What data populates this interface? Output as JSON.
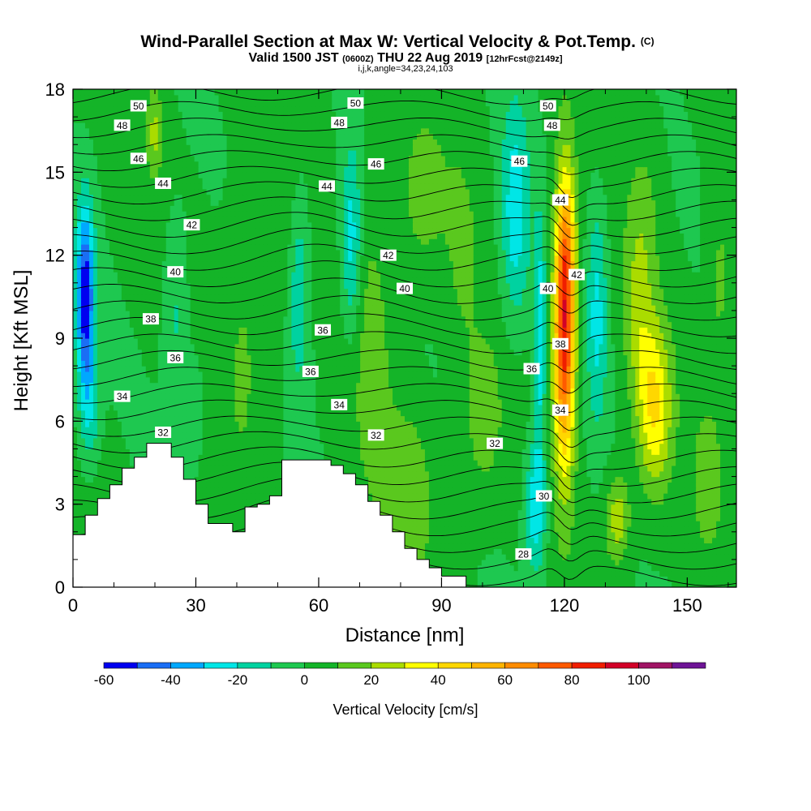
{
  "chart_data": {
    "type": "heatmap",
    "title": "Wind-Parallel Section at Max W: Vertical Velocity & Pot.Temp.",
    "title_suffix": "(C)",
    "subtitle_parts": {
      "valid_prefix": "Valid 1500 JST",
      "zulu": "(0600Z)",
      "date": "THU 22 Aug 2019",
      "forecast": "[12hrFcst@2149z]"
    },
    "indices_line": "i,j,k,angle=34,23,24,103",
    "xlabel": "Distance [nm]",
    "ylabel": "Height [Kft MSL]",
    "xlim": [
      0,
      162
    ],
    "ylim": [
      0,
      18
    ],
    "x_ticks": [
      "0",
      "30",
      "60",
      "90",
      "120",
      "150"
    ],
    "y_ticks": [
      "0",
      "3",
      "6",
      "9",
      "12",
      "15",
      "18"
    ],
    "colorbar": {
      "label": "Vertical Velocity [cm/s]",
      "ticks": [
        "-60",
        "-40",
        "-20",
        "0",
        "20",
        "40",
        "60",
        "80",
        "100"
      ],
      "levels": [
        -60,
        -50,
        -40,
        -30,
        -20,
        -10,
        0,
        10,
        20,
        30,
        40,
        50,
        60,
        70,
        80,
        90,
        100,
        110
      ],
      "colors": [
        "#0000f0",
        "#1a6ef5",
        "#00a8ff",
        "#00e6e6",
        "#00d2a0",
        "#1ec850",
        "#14b428",
        "#5ac81e",
        "#aadc00",
        "#ffff00",
        "#ffd700",
        "#ffb400",
        "#ff8c00",
        "#ff5a00",
        "#f01e00",
        "#d20028",
        "#a01464",
        "#6e1496"
      ]
    },
    "theta_contour_labels": [
      "28",
      "30",
      "32",
      "34",
      "36",
      "38",
      "40",
      "42",
      "44",
      "46",
      "48",
      "50"
    ],
    "theta_contour_label_positions": [
      {
        "label": "50",
        "x": 16,
        "y": 17.4
      },
      {
        "label": "48",
        "x": 12,
        "y": 16.7
      },
      {
        "label": "46",
        "x": 16,
        "y": 15.5
      },
      {
        "label": "44",
        "x": 22,
        "y": 14.6
      },
      {
        "label": "42",
        "x": 29,
        "y": 13.1
      },
      {
        "label": "40",
        "x": 25,
        "y": 11.4
      },
      {
        "label": "38",
        "x": 19,
        "y": 9.7
      },
      {
        "label": "36",
        "x": 25,
        "y": 8.3
      },
      {
        "label": "34",
        "x": 12,
        "y": 6.9
      },
      {
        "label": "32",
        "x": 22,
        "y": 5.6
      },
      {
        "label": "50",
        "x": 69,
        "y": 17.5
      },
      {
        "label": "48",
        "x": 65,
        "y": 16.8
      },
      {
        "label": "46",
        "x": 74,
        "y": 15.3
      },
      {
        "label": "44",
        "x": 62,
        "y": 14.5
      },
      {
        "label": "42",
        "x": 77,
        "y": 12.0
      },
      {
        "label": "40",
        "x": 81,
        "y": 10.8
      },
      {
        "label": "36",
        "x": 61,
        "y": 9.3
      },
      {
        "label": "36",
        "x": 58,
        "y": 7.8
      },
      {
        "label": "34",
        "x": 65,
        "y": 6.6
      },
      {
        "label": "32",
        "x": 74,
        "y": 5.5
      },
      {
        "label": "32",
        "x": 103,
        "y": 5.2
      },
      {
        "label": "50",
        "x": 116,
        "y": 17.4
      },
      {
        "label": "48",
        "x": 117,
        "y": 16.7
      },
      {
        "label": "46",
        "x": 109,
        "y": 15.4
      },
      {
        "label": "44",
        "x": 119,
        "y": 14.0
      },
      {
        "label": "42",
        "x": 123,
        "y": 11.3
      },
      {
        "label": "40",
        "x": 116,
        "y": 10.8
      },
      {
        "label": "38",
        "x": 119,
        "y": 8.8
      },
      {
        "label": "36",
        "x": 112,
        "y": 7.9
      },
      {
        "label": "34",
        "x": 119,
        "y": 6.4
      },
      {
        "label": "30",
        "x": 115,
        "y": 3.3
      },
      {
        "label": "28",
        "x": 110,
        "y": 1.2
      }
    ],
    "terrain_profile": {
      "x": [
        0,
        3,
        6,
        9,
        12,
        15,
        18,
        21,
        24,
        27,
        30,
        33,
        36,
        39,
        42,
        45,
        48,
        51,
        54,
        57,
        60,
        63,
        66,
        69,
        72,
        75,
        78,
        81,
        84,
        87,
        90,
        93
      ],
      "height": [
        1.9,
        2.6,
        3.2,
        3.7,
        4.3,
        4.7,
        5.2,
        5.2,
        4.7,
        3.9,
        3.0,
        2.3,
        2.3,
        2.0,
        2.9,
        3.0,
        3.3,
        4.6,
        4.6,
        4.6,
        4.6,
        4.4,
        4.1,
        3.7,
        3.1,
        2.6,
        2.0,
        1.4,
        1.0,
        0.7,
        0.4,
        0.4
      ]
    }
  }
}
